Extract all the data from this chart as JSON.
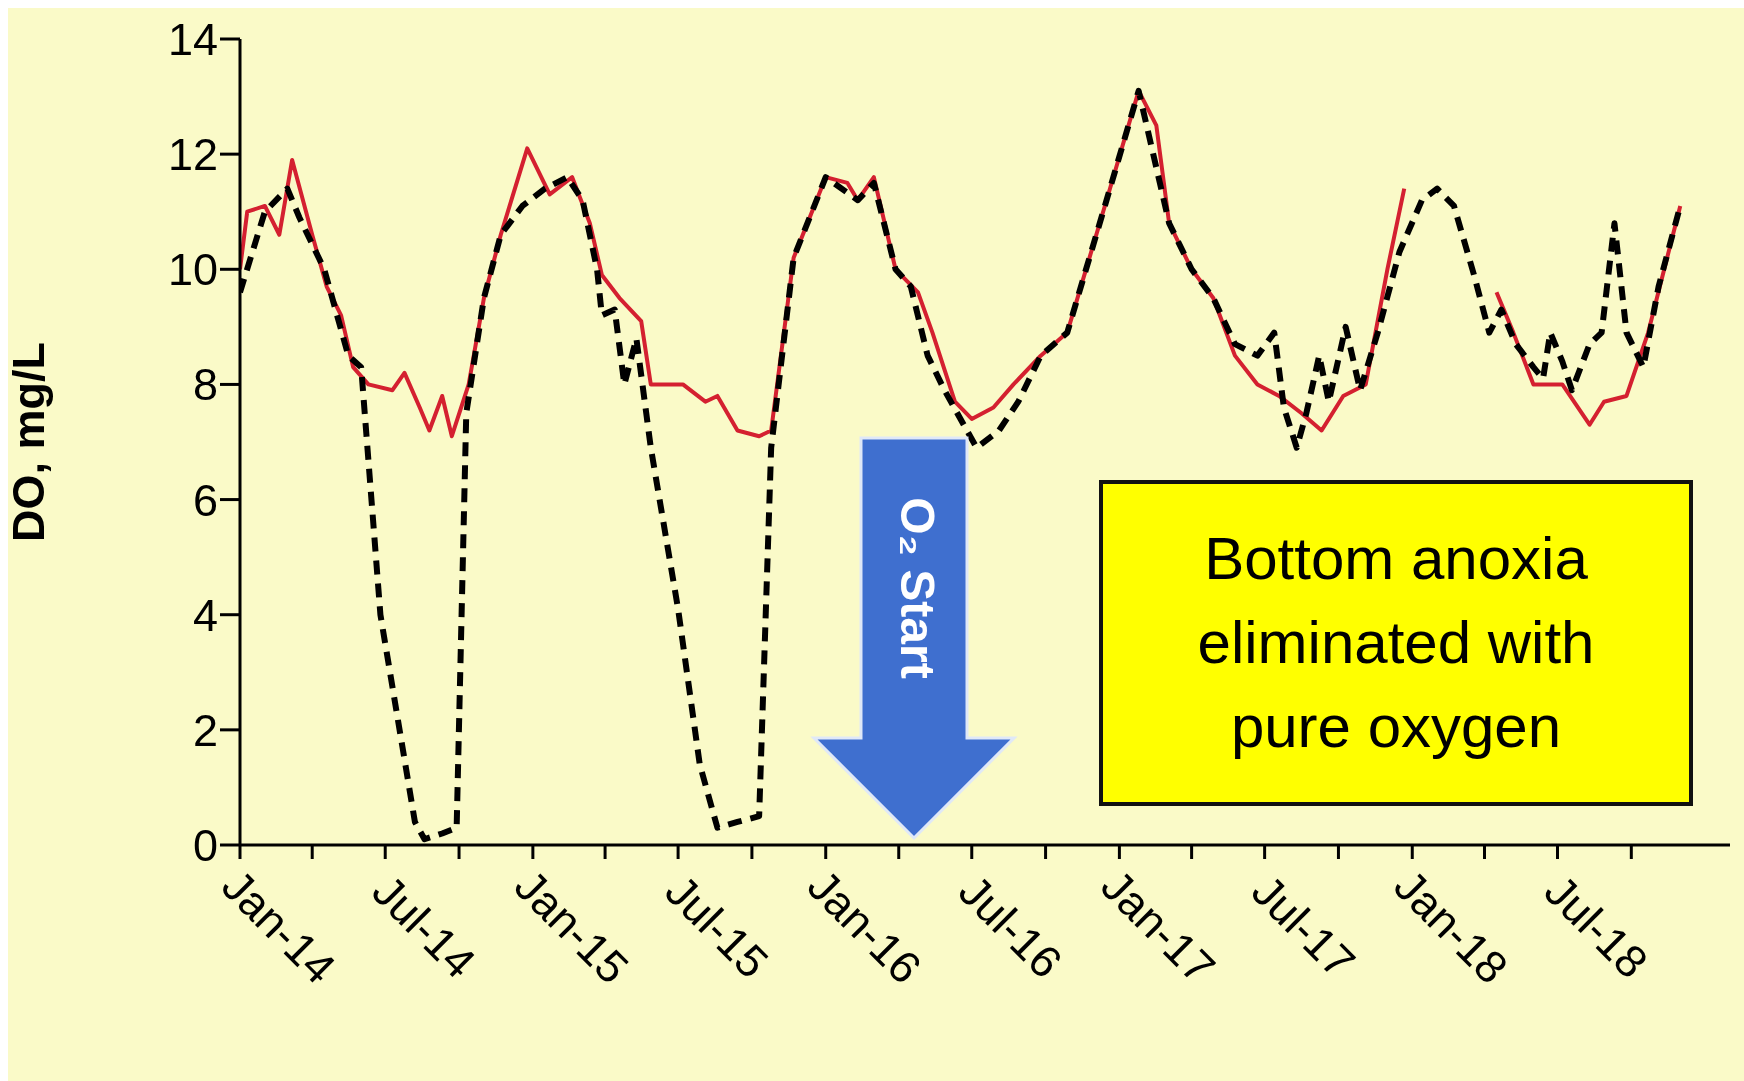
{
  "chart_data": {
    "type": "line",
    "ylabel": "DO, mg/L",
    "ylim": [
      0,
      14
    ],
    "yticks": [
      0,
      2,
      4,
      6,
      8,
      10,
      12,
      14
    ],
    "xlim": [
      "2014-01-01",
      "2019-02-01"
    ],
    "xticks": [
      {
        "value": "2014-01",
        "label": "Jan-14"
      },
      {
        "value": "2014-04",
        "label": null
      },
      {
        "value": "2014-07",
        "label": "Jul-14"
      },
      {
        "value": "2014-10",
        "label": null
      },
      {
        "value": "2015-01",
        "label": "Jan-15"
      },
      {
        "value": "2015-04",
        "label": null
      },
      {
        "value": "2015-07",
        "label": "Jul-15"
      },
      {
        "value": "2015-10",
        "label": null
      },
      {
        "value": "2016-01",
        "label": "Jan-16"
      },
      {
        "value": "2016-04",
        "label": null
      },
      {
        "value": "2016-07",
        "label": "Jul-16"
      },
      {
        "value": "2016-10",
        "label": null
      },
      {
        "value": "2017-01",
        "label": "Jan-17"
      },
      {
        "value": "2017-04",
        "label": null
      },
      {
        "value": "2017-07",
        "label": "Jul-17"
      },
      {
        "value": "2017-10",
        "label": null
      },
      {
        "value": "2018-01",
        "label": "Jan-18"
      },
      {
        "value": "2018-04",
        "label": null
      },
      {
        "value": "2018-07",
        "label": "Jul-18"
      },
      {
        "value": "2018-10",
        "label": null
      }
    ],
    "marker": "none",
    "annotations": [
      "O₂ Start",
      "Bottom anoxia eliminated with pure oxygen"
    ],
    "series": [
      {
        "color": "#d42030",
        "line_style": "solid",
        "x": [
          "2014-01-01",
          "2014-01-10",
          "2014-02-01",
          "2014-02-19",
          "2014-03-07",
          "2014-04-01",
          "2014-04-19",
          "2014-05-07",
          "2014-05-22",
          "2014-06-10",
          "2014-07-10",
          "2014-07-25",
          "2014-08-13",
          "2014-08-25",
          "2014-09-10",
          "2014-09-22",
          "2014-10-13",
          "2014-11-01",
          "2014-11-22",
          "2014-12-25",
          "2015-01-22",
          "2015-02-19",
          "2015-03-13",
          "2015-03-28",
          "2015-04-19",
          "2015-05-16",
          "2015-05-28",
          "2015-07-07",
          "2015-08-04",
          "2015-08-19",
          "2015-09-13",
          "2015-10-10",
          "2015-10-25",
          "2015-11-22",
          "2016-01-01",
          "2016-01-28",
          "2016-02-10",
          "2016-03-01",
          "2016-03-28",
          "2016-04-25",
          "2016-05-13",
          "2016-06-10",
          "2016-07-01",
          "2016-07-28",
          "2016-08-22",
          "2016-09-25",
          "2016-10-28",
          "2016-12-16",
          "2017-01-25",
          "2017-02-16",
          "2017-03-04",
          "2017-04-01",
          "2017-04-28",
          "2017-05-25",
          "2017-06-22",
          "2017-07-19",
          "2017-08-16",
          "2017-09-10",
          "2017-10-07",
          "2017-11-04",
          "2017-12-01",
          "2017-12-22",
          "2018-02-01",
          "2018-04-16",
          "2018-05-07",
          "2018-06-01",
          "2018-07-07",
          "2018-08-10",
          "2018-08-28",
          "2018-09-25",
          "2018-10-22",
          "2018-12-01"
        ],
        "values": [
          10.0,
          11.0,
          11.1,
          10.6,
          11.9,
          10.6,
          9.7,
          9.2,
          8.3,
          8.0,
          7.9,
          8.2,
          7.6,
          7.2,
          7.8,
          7.1,
          8.0,
          9.5,
          10.6,
          12.1,
          11.3,
          11.6,
          10.8,
          9.9,
          9.5,
          9.1,
          8.0,
          8.0,
          7.7,
          7.8,
          7.2,
          7.1,
          7.2,
          10.2,
          11.6,
          11.5,
          11.2,
          11.6,
          10.0,
          9.6,
          8.9,
          7.7,
          7.4,
          7.6,
          8.0,
          8.5,
          8.9,
          11.2,
          13.1,
          12.5,
          10.8,
          10.0,
          9.5,
          8.5,
          8.0,
          7.8,
          7.5,
          7.2,
          7.8,
          8.0,
          10.0,
          11.4,
          null,
          9.6,
          8.9,
          8.0,
          8.0,
          7.3,
          7.7,
          7.8,
          8.9,
          11.1
        ]
      },
      {
        "color": "#000000",
        "line_style": "dashed",
        "x": [
          "2014-01-01",
          "2014-02-01",
          "2014-03-01",
          "2014-03-16",
          "2014-04-16",
          "2014-05-16",
          "2014-06-01",
          "2014-06-25",
          "2014-08-07",
          "2014-08-19",
          "2014-09-10",
          "2014-09-28",
          "2014-10-10",
          "2014-11-01",
          "2014-11-22",
          "2014-12-19",
          "2015-01-16",
          "2015-02-13",
          "2015-03-04",
          "2015-03-22",
          "2015-03-28",
          "2015-04-13",
          "2015-04-25",
          "2015-05-10",
          "2015-05-28",
          "2015-07-01",
          "2015-07-28",
          "2015-08-19",
          "2015-09-13",
          "2015-10-10",
          "2015-10-25",
          "2015-11-22",
          "2016-01-01",
          "2016-02-10",
          "2016-03-01",
          "2016-03-28",
          "2016-04-16",
          "2016-05-07",
          "2016-05-28",
          "2016-07-07",
          "2016-08-04",
          "2016-08-28",
          "2016-09-25",
          "2016-10-28",
          "2016-12-16",
          "2017-01-25",
          "2017-03-04",
          "2017-04-01",
          "2017-04-28",
          "2017-05-25",
          "2017-06-22",
          "2017-07-13",
          "2017-07-25",
          "2017-08-10",
          "2017-08-22",
          "2017-09-07",
          "2017-09-19",
          "2017-10-10",
          "2017-10-28",
          "2017-11-19",
          "2017-12-16",
          "2018-01-13",
          "2018-02-01",
          "2018-02-22",
          "2018-03-19",
          "2018-04-07",
          "2018-04-22",
          "2018-05-10",
          "2018-06-01",
          "2018-06-13",
          "2018-06-22",
          "2018-07-07",
          "2018-07-19",
          "2018-08-10",
          "2018-08-25",
          "2018-09-10",
          "2018-09-25",
          "2018-10-16",
          "2018-11-04",
          "2018-12-01"
        ],
        "values": [
          9.6,
          11.0,
          11.4,
          10.9,
          10.0,
          8.5,
          8.3,
          4.0,
          0.4,
          0.1,
          0.2,
          0.3,
          7.5,
          9.5,
          10.6,
          11.1,
          11.4,
          11.6,
          11.2,
          10.0,
          9.2,
          9.3,
          8.0,
          8.8,
          6.9,
          4.1,
          1.4,
          0.3,
          0.4,
          0.5,
          6.9,
          10.2,
          11.6,
          11.2,
          11.5,
          10.0,
          9.7,
          8.5,
          7.9,
          6.9,
          7.2,
          7.7,
          8.5,
          8.9,
          11.2,
          13.1,
          10.8,
          10.0,
          9.5,
          8.7,
          8.5,
          8.9,
          7.6,
          6.9,
          7.5,
          8.5,
          7.7,
          9.0,
          7.9,
          8.9,
          10.3,
          11.2,
          11.4,
          11.1,
          9.9,
          8.9,
          9.3,
          8.7,
          8.3,
          8.1,
          8.9,
          8.4,
          7.9,
          8.7,
          8.9,
          10.8,
          8.9,
          8.3,
          9.7,
          11.1
        ]
      }
    ]
  }
}
